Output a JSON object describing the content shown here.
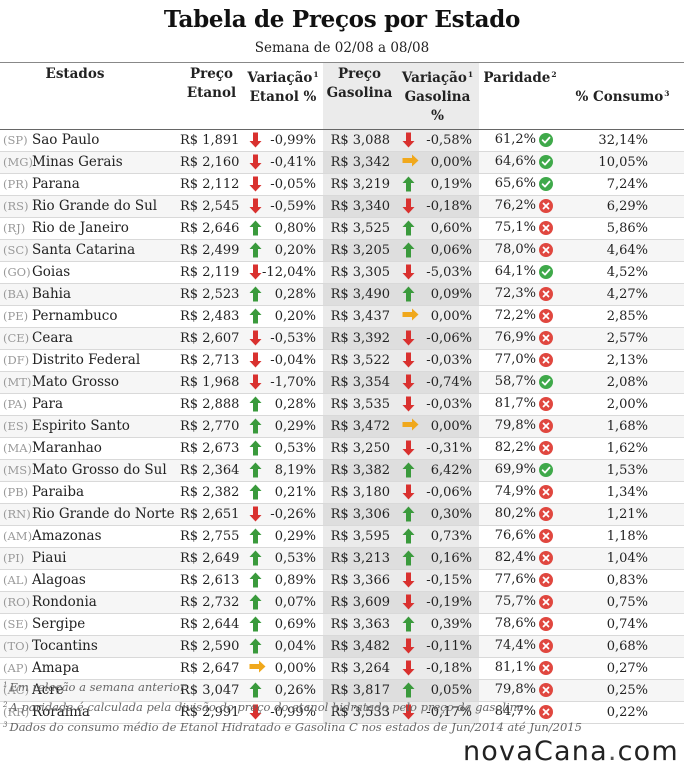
{
  "header": {
    "title": "Tabela de Preços por Estado",
    "subtitle": "Semana de 02/08 a 08/08"
  },
  "columns": {
    "estados": "Estados",
    "preco_etanol": [
      "Preço",
      "Etanol"
    ],
    "var_etanol": [
      "Variação",
      "Etanol %"
    ],
    "preco_gasolina": [
      "Preço",
      "Gasolina"
    ],
    "var_gasolina": [
      "Variação",
      "Gasolina %"
    ],
    "paridade": "Paridade",
    "consumo": "% Consumo",
    "sup1": "1",
    "sup2": "2",
    "sup3": "3"
  },
  "colors": {
    "up": "#3a9a3c",
    "down": "#d9312f",
    "flat": "#f0a81c",
    "check": "#3fa94a",
    "cross": "#e0473f"
  },
  "rows": [
    {
      "uf": "(SP)",
      "estado": "Sao Paulo",
      "preco_etanol": "R$ 1,891",
      "var_etanol_dir": "down",
      "var_etanol": "-0,99%",
      "preco_gasolina": "R$ 3,088",
      "var_gasolina_dir": "down",
      "var_gasolina": "-0,58%",
      "paridade": "61,2%",
      "paridade_ok": true,
      "consumo": "32,14%"
    },
    {
      "uf": "(MG)",
      "estado": "Minas Gerais",
      "preco_etanol": "R$ 2,160",
      "var_etanol_dir": "down",
      "var_etanol": "-0,41%",
      "preco_gasolina": "R$ 3,342",
      "var_gasolina_dir": "flat",
      "var_gasolina": "0,00%",
      "paridade": "64,6%",
      "paridade_ok": true,
      "consumo": "10,05%"
    },
    {
      "uf": "(PR)",
      "estado": "Parana",
      "preco_etanol": "R$ 2,112",
      "var_etanol_dir": "down",
      "var_etanol": "-0,05%",
      "preco_gasolina": "R$ 3,219",
      "var_gasolina_dir": "up",
      "var_gasolina": "0,19%",
      "paridade": "65,6%",
      "paridade_ok": true,
      "consumo": "7,24%"
    },
    {
      "uf": "(RS)",
      "estado": "Rio Grande do Sul",
      "preco_etanol": "R$ 2,545",
      "var_etanol_dir": "down",
      "var_etanol": "-0,59%",
      "preco_gasolina": "R$ 3,340",
      "var_gasolina_dir": "down",
      "var_gasolina": "-0,18%",
      "paridade": "76,2%",
      "paridade_ok": false,
      "consumo": "6,29%"
    },
    {
      "uf": "(RJ)",
      "estado": "Rio de Janeiro",
      "preco_etanol": "R$ 2,646",
      "var_etanol_dir": "up",
      "var_etanol": "0,80%",
      "preco_gasolina": "R$ 3,525",
      "var_gasolina_dir": "up",
      "var_gasolina": "0,60%",
      "paridade": "75,1%",
      "paridade_ok": false,
      "consumo": "5,86%"
    },
    {
      "uf": "(SC)",
      "estado": "Santa Catarina",
      "preco_etanol": "R$ 2,499",
      "var_etanol_dir": "up",
      "var_etanol": "0,20%",
      "preco_gasolina": "R$ 3,205",
      "var_gasolina_dir": "up",
      "var_gasolina": "0,06%",
      "paridade": "78,0%",
      "paridade_ok": false,
      "consumo": "4,64%"
    },
    {
      "uf": "(GO)",
      "estado": "Goias",
      "preco_etanol": "R$ 2,119",
      "var_etanol_dir": "down",
      "var_etanol": "-12,04%",
      "preco_gasolina": "R$ 3,305",
      "var_gasolina_dir": "down",
      "var_gasolina": "-5,03%",
      "paridade": "64,1%",
      "paridade_ok": true,
      "consumo": "4,52%"
    },
    {
      "uf": "(BA)",
      "estado": "Bahia",
      "preco_etanol": "R$ 2,523",
      "var_etanol_dir": "up",
      "var_etanol": "0,28%",
      "preco_gasolina": "R$ 3,490",
      "var_gasolina_dir": "up",
      "var_gasolina": "0,09%",
      "paridade": "72,3%",
      "paridade_ok": false,
      "consumo": "4,27%"
    },
    {
      "uf": "(PE)",
      "estado": "Pernambuco",
      "preco_etanol": "R$ 2,483",
      "var_etanol_dir": "up",
      "var_etanol": "0,20%",
      "preco_gasolina": "R$ 3,437",
      "var_gasolina_dir": "flat",
      "var_gasolina": "0,00%",
      "paridade": "72,2%",
      "paridade_ok": false,
      "consumo": "2,85%"
    },
    {
      "uf": "(CE)",
      "estado": "Ceara",
      "preco_etanol": "R$ 2,607",
      "var_etanol_dir": "down",
      "var_etanol": "-0,53%",
      "preco_gasolina": "R$ 3,392",
      "var_gasolina_dir": "down",
      "var_gasolina": "-0,06%",
      "paridade": "76,9%",
      "paridade_ok": false,
      "consumo": "2,57%"
    },
    {
      "uf": "(DF)",
      "estado": "Distrito Federal",
      "preco_etanol": "R$ 2,713",
      "var_etanol_dir": "down",
      "var_etanol": "-0,04%",
      "preco_gasolina": "R$ 3,522",
      "var_gasolina_dir": "down",
      "var_gasolina": "-0,03%",
      "paridade": "77,0%",
      "paridade_ok": false,
      "consumo": "2,13%"
    },
    {
      "uf": "(MT)",
      "estado": "Mato Grosso",
      "preco_etanol": "R$ 1,968",
      "var_etanol_dir": "down",
      "var_etanol": "-1,70%",
      "preco_gasolina": "R$ 3,354",
      "var_gasolina_dir": "down",
      "var_gasolina": "-0,74%",
      "paridade": "58,7%",
      "paridade_ok": true,
      "consumo": "2,08%"
    },
    {
      "uf": "(PA)",
      "estado": "Para",
      "preco_etanol": "R$ 2,888",
      "var_etanol_dir": "up",
      "var_etanol": "0,28%",
      "preco_gasolina": "R$ 3,535",
      "var_gasolina_dir": "down",
      "var_gasolina": "-0,03%",
      "paridade": "81,7%",
      "paridade_ok": false,
      "consumo": "2,00%"
    },
    {
      "uf": "(ES)",
      "estado": "Espirito Santo",
      "preco_etanol": "R$ 2,770",
      "var_etanol_dir": "up",
      "var_etanol": "0,29%",
      "preco_gasolina": "R$ 3,472",
      "var_gasolina_dir": "flat",
      "var_gasolina": "0,00%",
      "paridade": "79,8%",
      "paridade_ok": false,
      "consumo": "1,68%"
    },
    {
      "uf": "(MA)",
      "estado": "Maranhao",
      "preco_etanol": "R$ 2,673",
      "var_etanol_dir": "up",
      "var_etanol": "0,53%",
      "preco_gasolina": "R$ 3,250",
      "var_gasolina_dir": "down",
      "var_gasolina": "-0,31%",
      "paridade": "82,2%",
      "paridade_ok": false,
      "consumo": "1,62%"
    },
    {
      "uf": "(MS)",
      "estado": "Mato Grosso do Sul",
      "preco_etanol": "R$ 2,364",
      "var_etanol_dir": "up",
      "var_etanol": "8,19%",
      "preco_gasolina": "R$ 3,382",
      "var_gasolina_dir": "up",
      "var_gasolina": "6,42%",
      "paridade": "69,9%",
      "paridade_ok": true,
      "consumo": "1,53%"
    },
    {
      "uf": "(PB)",
      "estado": "Paraiba",
      "preco_etanol": "R$ 2,382",
      "var_etanol_dir": "up",
      "var_etanol": "0,21%",
      "preco_gasolina": "R$ 3,180",
      "var_gasolina_dir": "down",
      "var_gasolina": "-0,06%",
      "paridade": "74,9%",
      "paridade_ok": false,
      "consumo": "1,34%"
    },
    {
      "uf": "(RN)",
      "estado": "Rio Grande do Norte",
      "preco_etanol": "R$ 2,651",
      "var_etanol_dir": "down",
      "var_etanol": "-0,26%",
      "preco_gasolina": "R$ 3,306",
      "var_gasolina_dir": "up",
      "var_gasolina": "0,30%",
      "paridade": "80,2%",
      "paridade_ok": false,
      "consumo": "1,21%"
    },
    {
      "uf": "(AM)",
      "estado": "Amazonas",
      "preco_etanol": "R$ 2,755",
      "var_etanol_dir": "up",
      "var_etanol": "0,29%",
      "preco_gasolina": "R$ 3,595",
      "var_gasolina_dir": "up",
      "var_gasolina": "0,73%",
      "paridade": "76,6%",
      "paridade_ok": false,
      "consumo": "1,18%"
    },
    {
      "uf": "(PI)",
      "estado": "Piaui",
      "preco_etanol": "R$ 2,649",
      "var_etanol_dir": "up",
      "var_etanol": "0,53%",
      "preco_gasolina": "R$ 3,213",
      "var_gasolina_dir": "up",
      "var_gasolina": "0,16%",
      "paridade": "82,4%",
      "paridade_ok": false,
      "consumo": "1,04%"
    },
    {
      "uf": "(AL)",
      "estado": "Alagoas",
      "preco_etanol": "R$ 2,613",
      "var_etanol_dir": "up",
      "var_etanol": "0,89%",
      "preco_gasolina": "R$ 3,366",
      "var_gasolina_dir": "down",
      "var_gasolina": "-0,15%",
      "paridade": "77,6%",
      "paridade_ok": false,
      "consumo": "0,83%"
    },
    {
      "uf": "(RO)",
      "estado": "Rondonia",
      "preco_etanol": "R$ 2,732",
      "var_etanol_dir": "up",
      "var_etanol": "0,07%",
      "preco_gasolina": "R$ 3,609",
      "var_gasolina_dir": "down",
      "var_gasolina": "-0,19%",
      "paridade": "75,7%",
      "paridade_ok": false,
      "consumo": "0,75%"
    },
    {
      "uf": "(SE)",
      "estado": "Sergipe",
      "preco_etanol": "R$ 2,644",
      "var_etanol_dir": "up",
      "var_etanol": "0,69%",
      "preco_gasolina": "R$ 3,363",
      "var_gasolina_dir": "up",
      "var_gasolina": "0,39%",
      "paridade": "78,6%",
      "paridade_ok": false,
      "consumo": "0,74%"
    },
    {
      "uf": "(TO)",
      "estado": "Tocantins",
      "preco_etanol": "R$ 2,590",
      "var_etanol_dir": "up",
      "var_etanol": "0,04%",
      "preco_gasolina": "R$ 3,482",
      "var_gasolina_dir": "down",
      "var_gasolina": "-0,11%",
      "paridade": "74,4%",
      "paridade_ok": false,
      "consumo": "0,68%"
    },
    {
      "uf": "(AP)",
      "estado": "Amapa",
      "preco_etanol": "R$ 2,647",
      "var_etanol_dir": "flat",
      "var_etanol": "0,00%",
      "preco_gasolina": "R$ 3,264",
      "var_gasolina_dir": "down",
      "var_gasolina": "-0,18%",
      "paridade": "81,1%",
      "paridade_ok": false,
      "consumo": "0,27%"
    },
    {
      "uf": "(AC)",
      "estado": "Acre",
      "preco_etanol": "R$ 3,047",
      "var_etanol_dir": "up",
      "var_etanol": "0,26%",
      "preco_gasolina": "R$ 3,817",
      "var_gasolina_dir": "up",
      "var_gasolina": "0,05%",
      "paridade": "79,8%",
      "paridade_ok": false,
      "consumo": "0,25%"
    },
    {
      "uf": "(RR)",
      "estado": "Roraima",
      "preco_etanol": "R$ 2,991",
      "var_etanol_dir": "down",
      "var_etanol": "-0,99%",
      "preco_gasolina": "R$ 3,533",
      "var_gasolina_dir": "down",
      "var_gasolina": "-0,17%",
      "paridade": "84,7%",
      "paridade_ok": false,
      "consumo": "0,22%"
    }
  ],
  "footnotes": [
    {
      "num": "1",
      "text": "Em relação a semana anterior"
    },
    {
      "num": "2",
      "text": "A paridade é calculada pela divisão do preço do etanol hidratado pelo preço da gasolina"
    },
    {
      "num": "3",
      "text": "Dados do consumo médio de Etanol Hidratado e Gasolina C nos estados de Jun/2014 até Jun/2015"
    }
  ],
  "logo": {
    "part1": "nova",
    "part2": "Cana",
    "dot": ".",
    "part3": "com"
  }
}
